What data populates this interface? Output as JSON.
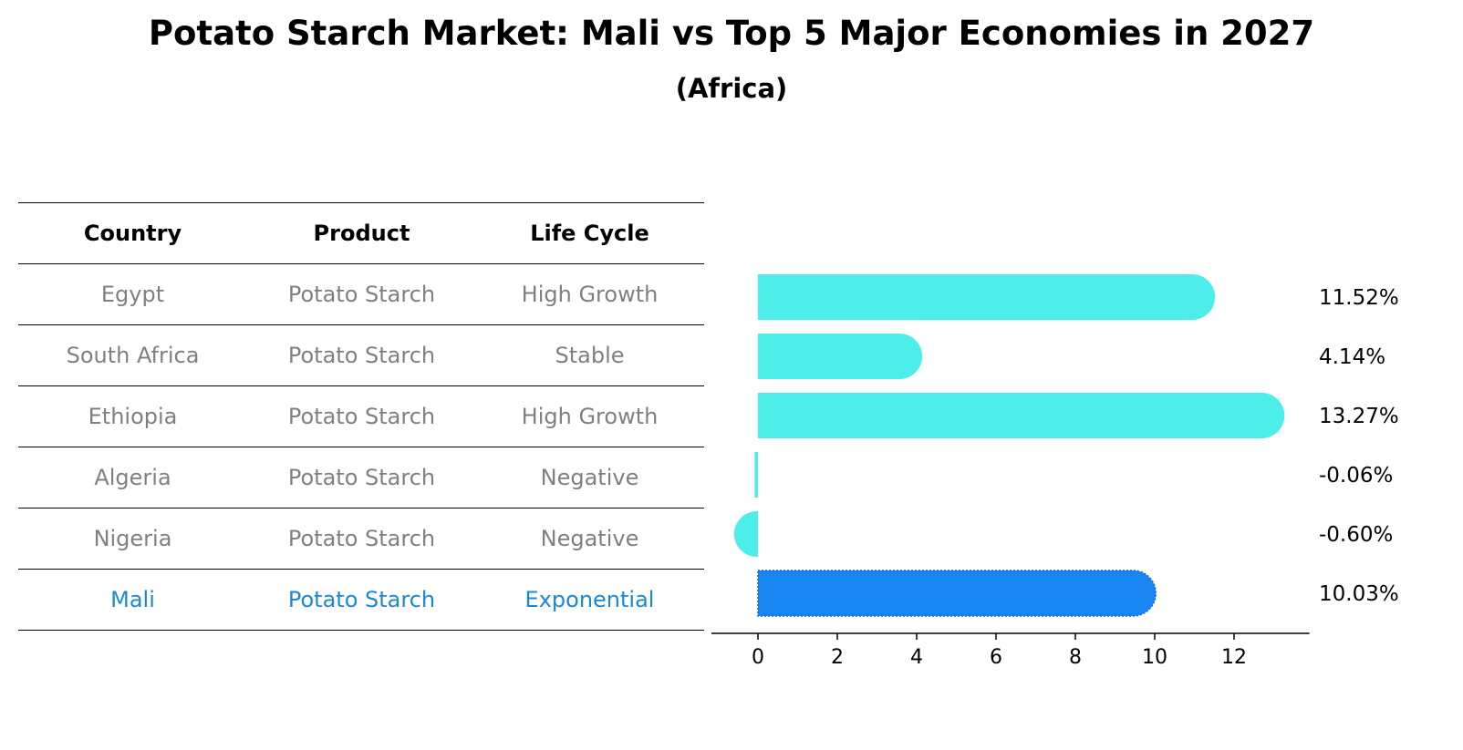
{
  "title": "Potato Starch Market: Mali vs Top 5 Major Economies in 2027",
  "subtitle": "(Africa)",
  "table": {
    "headers": [
      "Country",
      "Product",
      "Life Cycle"
    ],
    "rows": [
      [
        "Egypt",
        "Potato Starch",
        "High Growth"
      ],
      [
        "South Africa",
        "Potato Starch",
        "Stable"
      ],
      [
        "Ethiopia",
        "Potato Starch",
        "High Growth"
      ],
      [
        "Algeria",
        "Potato Starch",
        "Negative"
      ],
      [
        "Nigeria",
        "Potato Starch",
        "Negative"
      ],
      [
        "Mali",
        "Potato Starch",
        "Exponential"
      ]
    ],
    "highlight_row": 5,
    "highlight_color": "#1a88d6",
    "text_color": "#808080"
  },
  "chart_data": {
    "type": "bar",
    "orientation": "horizontal",
    "categories": [
      "Egypt",
      "South Africa",
      "Ethiopia",
      "Algeria",
      "Nigeria",
      "Mali"
    ],
    "values": [
      11.52,
      4.14,
      13.27,
      -0.06,
      -0.6,
      10.03
    ],
    "value_labels": [
      "11.52%",
      "4.14%",
      "13.27%",
      "-0.06%",
      "-0.60%",
      "10.03%"
    ],
    "bar_color": "#4deeea",
    "highlight_color": "#1a86f4",
    "highlight_index": 5,
    "xlim": [
      -1.3,
      13.9
    ],
    "xticks": [
      0,
      2,
      4,
      6,
      8,
      10,
      12
    ],
    "xlabel": "",
    "ylabel": "",
    "grid": false
  }
}
